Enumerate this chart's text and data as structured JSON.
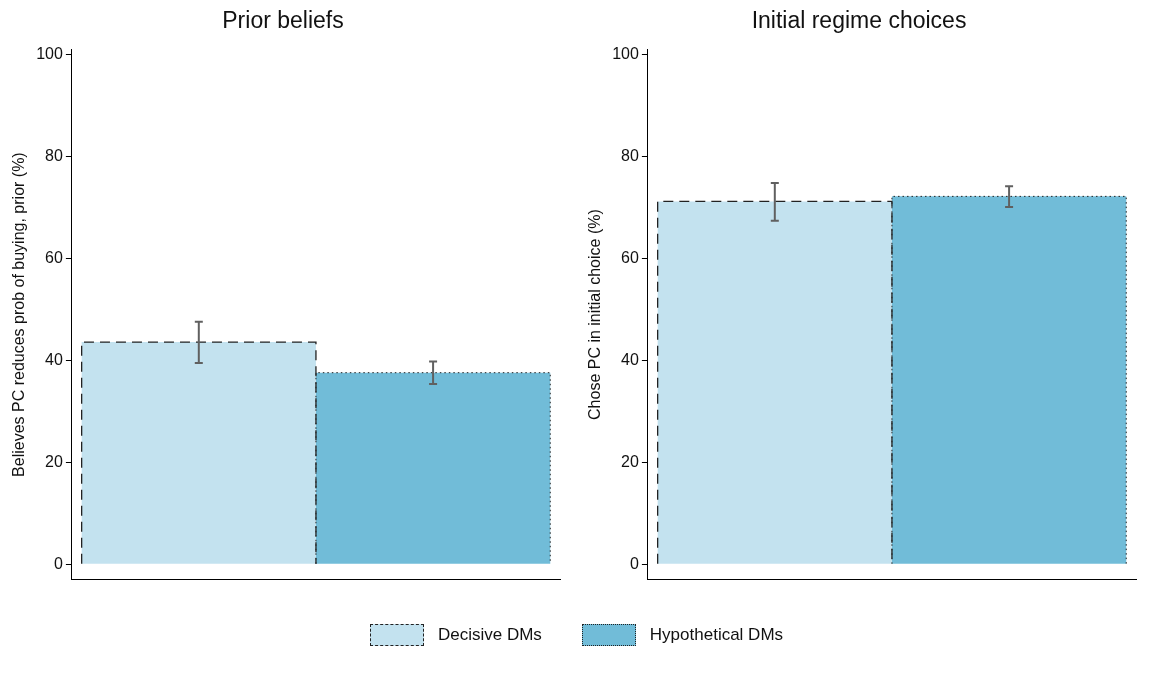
{
  "chart_data": [
    {
      "type": "bar",
      "title": "Prior beliefs",
      "ylabel": "Believes PC reduces prob of buying, prior (%)",
      "categories": [
        null
      ],
      "ylim": [
        -3,
        101
      ],
      "yticks": [
        0,
        20,
        40,
        60,
        80,
        100
      ],
      "grid": false,
      "legend": "bottom",
      "series": [
        {
          "name": "Decisive DMs",
          "color": "#c3e2ef",
          "line_style": "dashed",
          "values": [
            43.6
          ],
          "errors": [
            [
              39.5,
              47.6
            ]
          ]
        },
        {
          "name": "Hypothetical DMs",
          "color": "#71bcd8",
          "line_style": "dotted",
          "values": [
            37.6
          ],
          "errors": [
            [
              35.4,
              39.8
            ]
          ]
        }
      ]
    },
    {
      "type": "bar",
      "title": "Initial regime choices",
      "ylabel": "Chose PC in initial choice (%)",
      "categories": [
        null
      ],
      "ylim": [
        -3,
        101
      ],
      "yticks": [
        0,
        20,
        40,
        60,
        80,
        100
      ],
      "grid": false,
      "legend": "bottom",
      "series": [
        {
          "name": "Decisive DMs",
          "color": "#c3e2ef",
          "line_style": "dashed",
          "values": [
            71.2
          ],
          "errors": [
            [
              67.4,
              74.8
            ]
          ]
        },
        {
          "name": "Hypothetical DMs",
          "color": "#71bcd8",
          "line_style": "dotted",
          "values": [
            72.2
          ],
          "errors": [
            [
              70.1,
              74.2
            ]
          ]
        }
      ]
    }
  ]
}
